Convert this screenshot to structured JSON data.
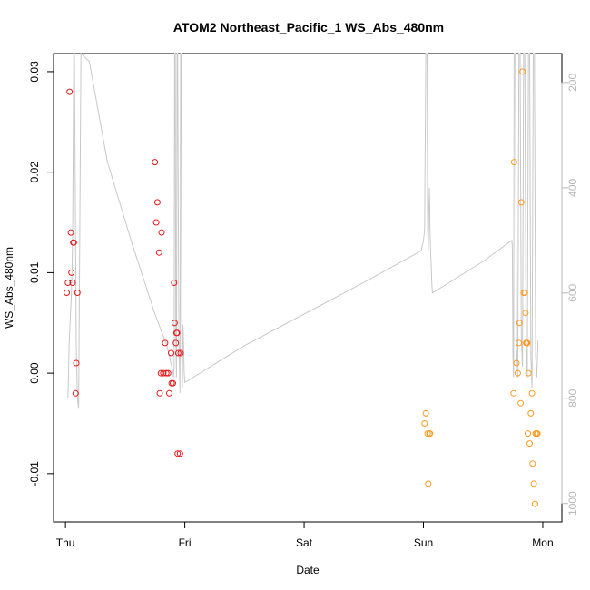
{
  "chart_data": {
    "type": "scatter",
    "title": "ATOM2 Northeast_Pacific_1 WS_Abs_480nm",
    "xlabel": "Date",
    "ylabel": "WS_Abs_480nm",
    "x_ticks": [
      {
        "label": "Thu",
        "value": 0
      },
      {
        "label": "Fri",
        "value": 1
      },
      {
        "label": "Sat",
        "value": 2
      },
      {
        "label": "Sun",
        "value": 3
      },
      {
        "label": "Mon",
        "value": 4
      }
    ],
    "xlim": [
      -0.1,
      4.16
    ],
    "ylim": [
      -0.0148,
      0.0318
    ],
    "y_ticks": [
      {
        "label": "-0.01",
        "value": -0.01
      },
      {
        "label": "0.00",
        "value": 0.0
      },
      {
        "label": "0.01",
        "value": 0.01
      },
      {
        "label": "0.02",
        "value": 0.02
      },
      {
        "label": "0.03",
        "value": 0.03
      }
    ],
    "y2lim": [
      1035,
      145
    ],
    "y2_ticks": [
      {
        "label": "200",
        "value": 200
      },
      {
        "label": "400",
        "value": 400
      },
      {
        "label": "600",
        "value": 600
      },
      {
        "label": "800",
        "value": 800
      },
      {
        "label": "1000",
        "value": 1000
      }
    ],
    "grid": false,
    "legend": "none",
    "colors": {
      "red": "#e41a1c",
      "orange": "#ff9a1f",
      "altitude_line": "#c8c8c8",
      "axis": "#000000",
      "right_axis": "#b8b8b8"
    },
    "series": [
      {
        "color": "red",
        "x": [
          0.01,
          0.02,
          0.035,
          0.045,
          0.05,
          0.06,
          0.065,
          0.07,
          0.085,
          0.09,
          0.1,
          0.75,
          0.76,
          0.77,
          0.785,
          0.79,
          0.8,
          0.805,
          0.82,
          0.835,
          0.845,
          0.86,
          0.87,
          0.885,
          0.89,
          0.9,
          0.91,
          0.915,
          0.925,
          0.93,
          0.935,
          0.94,
          0.945,
          0.96,
          0.965
        ],
        "y": [
          0.008,
          0.009,
          0.028,
          0.014,
          0.01,
          0.009,
          0.013,
          0.013,
          -0.002,
          0.001,
          0.008,
          0.021,
          0.015,
          0.017,
          0.012,
          -0.002,
          0.0,
          0.014,
          0.0,
          0.003,
          0.0,
          0.0,
          -0.002,
          0.002,
          -0.001,
          -0.001,
          0.009,
          0.005,
          0.003,
          0.004,
          0.004,
          -0.008,
          0.002,
          -0.008,
          0.002
        ]
      },
      {
        "color": "orange",
        "x": [
          3.01,
          3.02,
          3.035,
          3.04,
          3.05,
          3.055,
          3.755,
          3.76,
          3.78,
          3.79,
          3.8,
          3.805,
          3.815,
          3.82,
          3.83,
          3.84,
          3.85,
          3.855,
          3.86,
          3.865,
          3.87,
          3.875,
          3.88,
          3.89,
          3.9,
          3.91,
          3.915,
          3.925,
          3.935,
          3.94,
          3.95,
          3.955
        ],
        "y": [
          -0.005,
          -0.004,
          -0.006,
          -0.011,
          -0.006,
          -0.006,
          -0.002,
          0.021,
          0.001,
          0.0,
          0.003,
          0.005,
          -0.003,
          0.017,
          0.03,
          0.008,
          0.008,
          0.006,
          0.003,
          0.003,
          0.003,
          -0.006,
          0.0,
          -0.007,
          -0.004,
          -0.002,
          -0.009,
          -0.011,
          -0.013,
          -0.006,
          -0.006,
          -0.006
        ]
      },
      {
        "kind": "line",
        "axis": "right",
        "color": "altitude_line",
        "x": [
          0.02,
          0.025,
          0.03,
          0.04,
          0.05,
          0.055,
          0.06,
          0.07,
          0.075,
          0.085,
          0.09,
          0.1,
          0.11,
          0.13,
          0.2,
          0.35,
          0.55,
          0.75,
          0.85,
          0.9,
          0.905,
          0.91,
          0.915,
          0.92,
          0.925,
          0.93,
          0.935,
          0.94,
          0.95,
          0.96,
          0.965,
          0.97,
          0.975,
          0.98,
          0.985,
          0.99,
          0.995,
          1.0,
          1.5,
          2.0,
          2.5,
          2.98,
          3.0,
          3.01,
          3.02,
          3.03,
          3.035,
          3.04,
          3.045,
          3.05,
          3.055,
          3.06,
          3.065,
          3.07,
          3.075,
          3.5,
          3.74,
          3.745,
          3.75,
          3.755,
          3.76,
          3.77,
          3.78,
          3.79,
          3.8,
          3.81,
          3.82,
          3.83,
          3.84,
          3.85,
          3.86,
          3.87,
          3.88,
          3.89,
          3.9,
          3.91,
          3.92,
          3.93,
          3.94,
          3.95,
          3.96
        ],
        "y": [
          800,
          760,
          700,
          650,
          600,
          550,
          500,
          145,
          145,
          500,
          700,
          800,
          820,
          145,
          160,
          350,
          500,
          640,
          700,
          750,
          760,
          740,
          145,
          145,
          680,
          760,
          145,
          145,
          680,
          790,
          145,
          145,
          720,
          780,
          660,
          700,
          750,
          770,
          700,
          640,
          580,
          520,
          500,
          480,
          145,
          145,
          480,
          520,
          440,
          400,
          480,
          520,
          550,
          580,
          600,
          540,
          500,
          510,
          720,
          760,
          145,
          145,
          700,
          760,
          145,
          145,
          680,
          740,
          145,
          145,
          700,
          760,
          145,
          145,
          720,
          780,
          145,
          145,
          720,
          760,
          690
        ]
      }
    ]
  }
}
